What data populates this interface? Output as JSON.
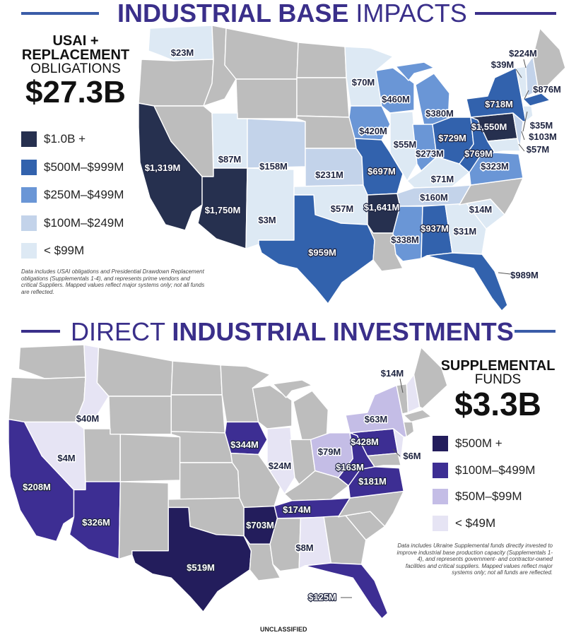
{
  "colors": {
    "brand": "#3a2f8a",
    "rule_accent": "#3a5ca8",
    "gray_state": "#bdbdbd",
    "border": "#ffffff"
  },
  "top": {
    "title_bold": "INDUSTRIAL BASE",
    "title_light": "IMPACTS",
    "header_line1": "USAI +",
    "header_line2": "REPLACEMENT",
    "header_line3": "OBLIGATIONS",
    "total": "$27.3B",
    "legend": [
      {
        "label": "$1.0B +",
        "color": "#26304f"
      },
      {
        "label": "$500M–$999M",
        "color": "#3262ad"
      },
      {
        "label": "$250M–$499M",
        "color": "#6a96d6"
      },
      {
        "label": "$100M–$249M",
        "color": "#c3d3ea"
      },
      {
        "label": "< $99M",
        "color": "#dde9f4"
      }
    ],
    "note": "Data includes USAI obligations and Presidential Drawdown Replacement obligations (Supplementals 1-4), and represents prime vendors and critical Suppliers. Mapped values reflect major systems only; not all funds are reflected.",
    "states": [
      {
        "state": "WA",
        "value": "$23M",
        "tier": 4
      },
      {
        "state": "CA",
        "value": "$1,319M",
        "tier": 0
      },
      {
        "state": "AZ",
        "value": "$1,750M",
        "tier": 0
      },
      {
        "state": "UT",
        "value": "$87M",
        "tier": 4
      },
      {
        "state": "CO",
        "value": "$158M",
        "tier": 3
      },
      {
        "state": "NM",
        "value": "$3M",
        "tier": 4
      },
      {
        "state": "KS",
        "value": "$231M",
        "tier": 3
      },
      {
        "state": "OK",
        "value": "$57M",
        "tier": 4
      },
      {
        "state": "TX",
        "value": "$959M",
        "tier": 1
      },
      {
        "state": "MN",
        "value": "$70M",
        "tier": 4
      },
      {
        "state": "IA",
        "value": "$420M",
        "tier": 2
      },
      {
        "state": "MO",
        "value": "$697M",
        "tier": 1
      },
      {
        "state": "AR",
        "value": "$1,641M",
        "tier": 0
      },
      {
        "state": "WI",
        "value": "$460M",
        "tier": 2
      },
      {
        "state": "IL",
        "value": "$55M",
        "tier": 4
      },
      {
        "state": "MI",
        "value": "$380M",
        "tier": 2
      },
      {
        "state": "IN",
        "value": "$273M",
        "tier": 2
      },
      {
        "state": "OH",
        "value": "$729M",
        "tier": 1
      },
      {
        "state": "KY",
        "value": "$71M",
        "tier": 4
      },
      {
        "state": "TN",
        "value": "$160M",
        "tier": 3
      },
      {
        "state": "MS",
        "value": "$338M",
        "tier": 2
      },
      {
        "state": "AL",
        "value": "$937M",
        "tier": 1
      },
      {
        "state": "GA",
        "value": "$31M",
        "tier": 4
      },
      {
        "state": "SC",
        "value": "$14M",
        "tier": 4
      },
      {
        "state": "FL",
        "value": "$989M",
        "tier": 1
      },
      {
        "state": "PA",
        "value": "$1,550M",
        "tier": 0
      },
      {
        "state": "NY",
        "value": "$718M",
        "tier": 1
      },
      {
        "state": "VA",
        "value": "$323M",
        "tier": 2
      },
      {
        "state": "WV",
        "value": "$769M",
        "tier": 1
      },
      {
        "state": "VT",
        "value": "$39M",
        "tier": 4
      },
      {
        "state": "NH",
        "value": "$224M",
        "tier": 3
      },
      {
        "state": "MA",
        "value": "$876M",
        "tier": 1
      },
      {
        "state": "CT",
        "value": "$35M",
        "tier": 4
      },
      {
        "state": "NJ",
        "value": "$103M",
        "tier": 3
      },
      {
        "state": "MD",
        "value": "$57M",
        "tier": 4
      }
    ]
  },
  "bottom": {
    "title_light": "DIRECT",
    "title_bold": "INDUSTRIAL INVESTMENTS",
    "header_line1": "SUPPLEMENTAL",
    "header_line2": "FUNDS",
    "total": "$3.3B",
    "legend": [
      {
        "label": "$500M +",
        "color": "#231d5c"
      },
      {
        "label": "$100M–$499M",
        "color": "#3d2e93"
      },
      {
        "label": "$50M–$99M",
        "color": "#c4bde6"
      },
      {
        "label": "< $49M",
        "color": "#e6e4f4"
      }
    ],
    "note": "Data includes Ukraine Supplemental funds directly invested to improve industrial base production capacity (Supplementals 1-4), and represents government- and contractor-owned facilities and critical suppliers. Mapped values reflect major systems only; not all funds are reflected.",
    "states": [
      {
        "state": "ID",
        "value": "$40M",
        "tier": 3
      },
      {
        "state": "NV",
        "value": "$4M",
        "tier": 3
      },
      {
        "state": "CA",
        "value": "$208M",
        "tier": 1
      },
      {
        "state": "AZ",
        "value": "$326M",
        "tier": 1
      },
      {
        "state": "TX",
        "value": "$519M",
        "tier": 0
      },
      {
        "state": "IA",
        "value": "$344M",
        "tier": 1
      },
      {
        "state": "IL",
        "value": "$24M",
        "tier": 3
      },
      {
        "state": "AR",
        "value": "$703M",
        "tier": 0
      },
      {
        "state": "TN",
        "value": "$174M",
        "tier": 1
      },
      {
        "state": "AL",
        "value": "$8M",
        "tier": 3
      },
      {
        "state": "FL",
        "value": "$125M",
        "tier": 1
      },
      {
        "state": "OH",
        "value": "$79M",
        "tier": 2
      },
      {
        "state": "PA",
        "value": "$428M",
        "tier": 1
      },
      {
        "state": "NY",
        "value": "$63M",
        "tier": 2
      },
      {
        "state": "WV",
        "value": "$163M",
        "tier": 1
      },
      {
        "state": "VA",
        "value": "$181M",
        "tier": 1
      },
      {
        "state": "NJ",
        "value": "$6M",
        "tier": 3
      },
      {
        "state": "NH",
        "value": "$14M",
        "tier": 3
      }
    ]
  },
  "footer": "UNCLASSIFIED"
}
